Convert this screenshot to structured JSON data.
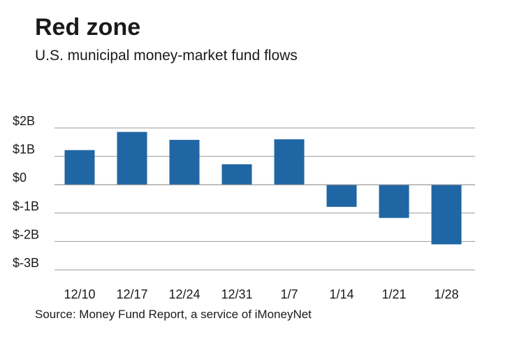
{
  "chart_data": {
    "type": "bar",
    "title": "Red zone",
    "subtitle": "U.S. municipal money-market fund flows",
    "source": "Source: Money Fund Report, a service of iMoneyNet",
    "categories": [
      "12/10",
      "12/17",
      "12/24",
      "12/31",
      "1/7",
      "1/14",
      "1/21",
      "1/28"
    ],
    "values": [
      1.22,
      1.86,
      1.58,
      0.72,
      1.6,
      -0.78,
      -1.17,
      -2.1
    ],
    "unit": "billions of dollars",
    "ylim": [
      -3,
      2
    ],
    "yticks": [
      2,
      1,
      0,
      -1,
      -2,
      -3
    ],
    "ytick_labels": [
      "$2B",
      "$1B",
      "$0",
      "$-1B",
      "$-2B",
      "$-3B"
    ],
    "grid": true,
    "bar_color": "#2066a4"
  }
}
